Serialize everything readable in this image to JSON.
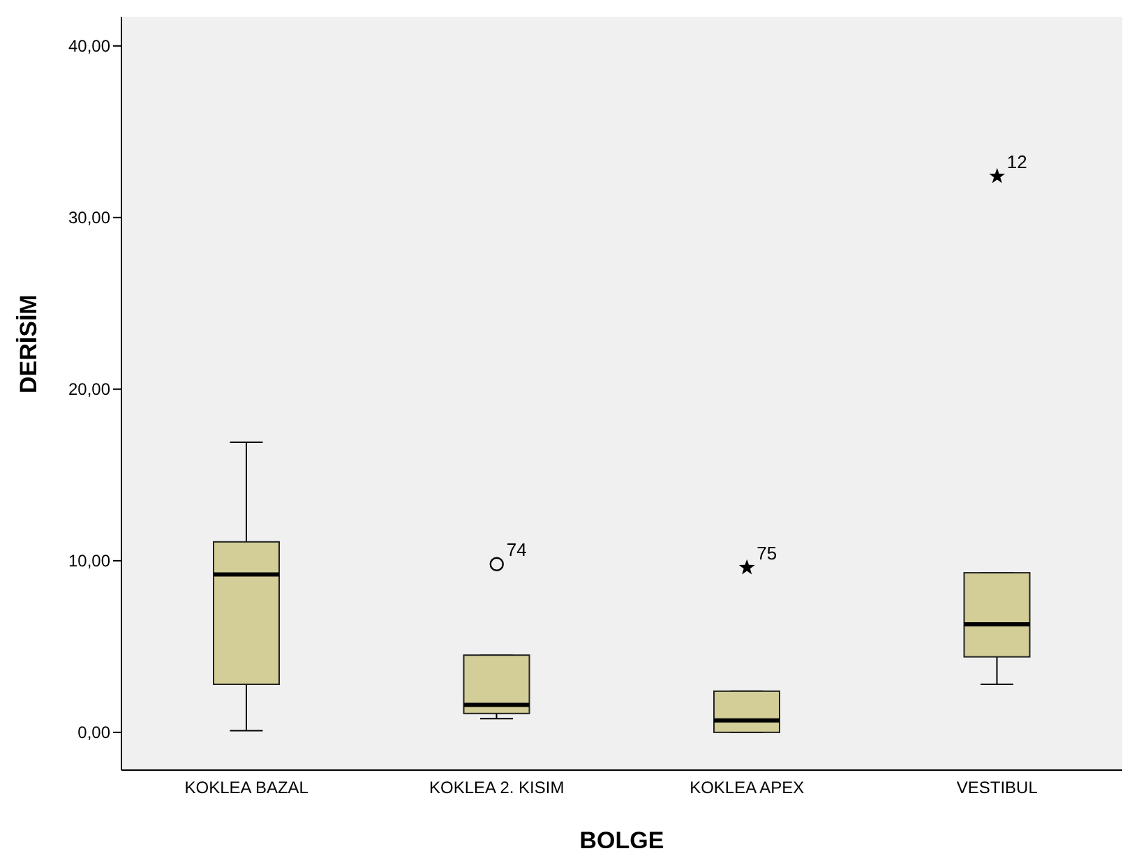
{
  "chart_data": {
    "type": "box",
    "xlabel": "BOLGE",
    "ylabel": "DERİSİM",
    "categories": [
      "KOKLEA BAZAL",
      "KOKLEA 2. KISIM",
      "KOKLEA APEX",
      "VESTIBUL"
    ],
    "color": "#d3ce97",
    "boxes": [
      {
        "low": 0.1,
        "q1": 2.8,
        "median": 9.2,
        "q3": 11.1,
        "high": 16.9
      },
      {
        "low": 0.8,
        "q1": 1.1,
        "median": 1.6,
        "q3": 4.5,
        "high": 4.5
      },
      {
        "low": 0,
        "q1": 0,
        "median": 0.7,
        "q3": 2.4,
        "high": 2.4
      },
      {
        "low": 2.8,
        "q1": 4.4,
        "median": 6.3,
        "q3": 9.3,
        "high": 9.3
      }
    ],
    "series": [
      {
        "type": "scatter",
        "marker": "circle",
        "color": "#000000",
        "x": [
          "KOKLEA 2. KISIM"
        ],
        "values": [
          9.8
        ]
      },
      {
        "type": "scatter",
        "marker": "star",
        "color": "#000000",
        "x": [
          "KOKLEA APEX",
          "VESTIBUL"
        ],
        "values": [
          9.6,
          32.4
        ]
      }
    ],
    "annotations": [
      {
        "text": "74",
        "x": "KOKLEA 2. KISIM",
        "y": 9.8
      },
      {
        "text": "75",
        "x": "KOKLEA APEX",
        "y": 9.6
      },
      {
        "text": "12",
        "x": "VESTIBUL",
        "y": 32.4
      }
    ],
    "ylim": [
      -2.2,
      41.7
    ],
    "yticks": [
      {
        "value": 0,
        "label": "0,00"
      },
      {
        "value": 10,
        "label": "10,00"
      },
      {
        "value": 20,
        "label": "20,00"
      },
      {
        "value": 30,
        "label": "30,00"
      },
      {
        "value": 40,
        "label": "40,00"
      }
    ],
    "legend": false
  }
}
